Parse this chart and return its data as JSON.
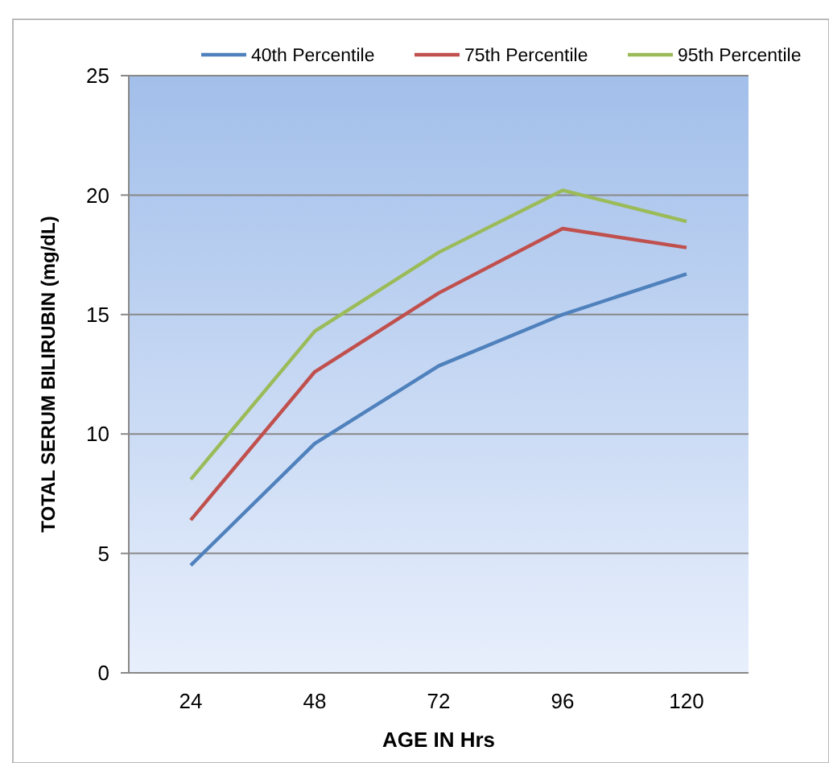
{
  "chart_data": {
    "type": "line",
    "xlabel": "AGE IN Hrs",
    "ylabel": "TOTAL SERUM BILIRUBIN (mg/dL)",
    "categories": [
      "24",
      "48",
      "72",
      "96",
      "120"
    ],
    "series": [
      {
        "name": "40th Percentile",
        "color": "#4f81bd",
        "values": [
          4.5,
          9.6,
          12.85,
          15.0,
          16.7
        ]
      },
      {
        "name": "75th Percentile",
        "color": "#c0504d",
        "values": [
          6.4,
          12.6,
          15.9,
          18.6,
          17.8
        ]
      },
      {
        "name": "95th Percentile",
        "color": "#9bbb59",
        "values": [
          8.1,
          14.3,
          17.6,
          20.2,
          18.9
        ]
      }
    ],
    "ylim": [
      0,
      25
    ],
    "yticks": [
      0,
      5,
      10,
      15,
      20,
      25
    ],
    "grid": "y",
    "legend": "top",
    "marker": "none",
    "line_style": "solid"
  }
}
